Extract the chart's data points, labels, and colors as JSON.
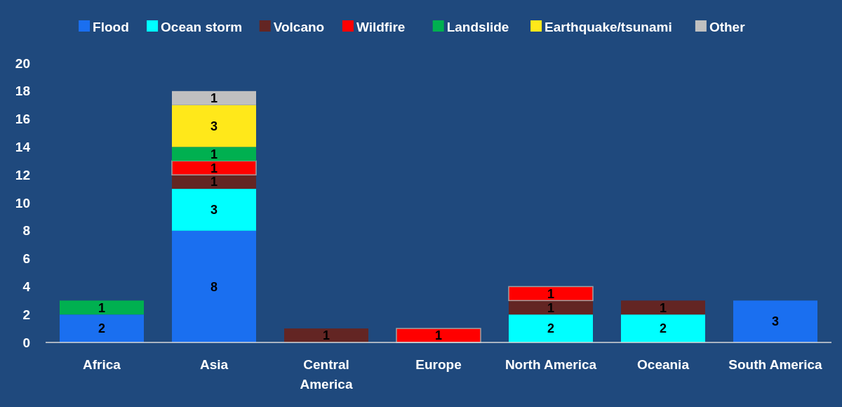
{
  "chart_data": {
    "type": "bar",
    "stacked": true,
    "data_labels": true,
    "legend": "top",
    "grid": false,
    "categories": [
      "Africa",
      "Asia",
      "Central America",
      "Europe",
      "North America",
      "Oceania",
      "South America"
    ],
    "ylim": [
      0,
      20
    ],
    "yticks": [
      0,
      2,
      4,
      6,
      8,
      10,
      12,
      14,
      16,
      18,
      20
    ],
    "series": [
      {
        "name": "Flood",
        "color": "#1a6ff0",
        "values": [
          2,
          8,
          null,
          null,
          null,
          null,
          3
        ]
      },
      {
        "name": "Ocean storm",
        "color": "#00ffff",
        "values": [
          null,
          3,
          null,
          null,
          2,
          2,
          null
        ]
      },
      {
        "name": "Volcano",
        "color": "#632523",
        "values": [
          null,
          1,
          1,
          null,
          1,
          1,
          null
        ]
      },
      {
        "name": "Wildfire",
        "color": "#ff0000",
        "values": [
          null,
          1,
          null,
          1,
          1,
          null,
          null
        ]
      },
      {
        "name": "Landslide",
        "color": "#00b050",
        "values": [
          1,
          1,
          null,
          null,
          null,
          null,
          null
        ]
      },
      {
        "name": "Earthquake/tsunami",
        "color": "#ffe81a",
        "values": [
          null,
          3,
          null,
          null,
          null,
          null,
          null
        ]
      },
      {
        "name": "Other",
        "color": "#c0c0c0",
        "values": [
          null,
          1,
          null,
          null,
          null,
          null,
          null
        ]
      }
    ]
  }
}
